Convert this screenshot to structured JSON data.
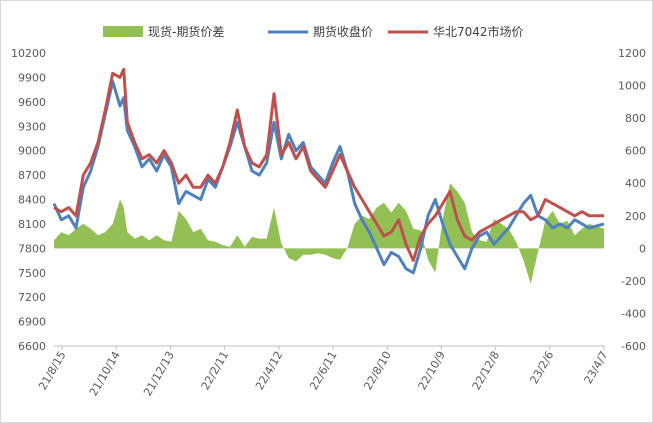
{
  "chart_data": {
    "type": "area+line",
    "legend": {
      "placement": "top",
      "items": [
        {
          "key": "spread",
          "label": "现货-期货价差",
          "color": "#92c054",
          "kind": "area"
        },
        {
          "key": "futures",
          "label": "期货收盘价",
          "color": "#4f81bd",
          "kind": "line"
        },
        {
          "key": "spot",
          "label": "华北7042市场价",
          "color": "#c0504d",
          "kind": "line"
        }
      ]
    },
    "left_axis": {
      "range": [
        6600,
        10200
      ],
      "ticks": [
        "6600",
        "6900",
        "7200",
        "7500",
        "7800",
        "8100",
        "8400",
        "8700",
        "9000",
        "9300",
        "9600",
        "9900",
        "10200"
      ]
    },
    "right_axis": {
      "range": [
        -600,
        1200
      ],
      "ticks": [
        "-600",
        "-400",
        "-200",
        "0",
        "200",
        "400",
        "600",
        "800",
        "1000",
        "1200"
      ]
    },
    "x_axis": {
      "ticks": [
        "21/8/15",
        "21/10/14",
        "21/12/13",
        "22/2/11",
        "22/4/12",
        "22/6/11",
        "22/8/10",
        "22/10/9",
        "22/12/8",
        "23/2/6",
        "23/4/7"
      ]
    },
    "series": {
      "futures": [
        [
          0,
          8350
        ],
        [
          2,
          8150
        ],
        [
          4,
          8200
        ],
        [
          6,
          8050
        ],
        [
          8,
          8550
        ],
        [
          10,
          8750
        ],
        [
          12,
          9050
        ],
        [
          14,
          9450
        ],
        [
          16,
          9850
        ],
        [
          18,
          9550
        ],
        [
          19,
          9650
        ],
        [
          20,
          9250
        ],
        [
          22,
          9050
        ],
        [
          24,
          8800
        ],
        [
          26,
          8900
        ],
        [
          28,
          8750
        ],
        [
          30,
          8950
        ],
        [
          32,
          8800
        ],
        [
          34,
          8350
        ],
        [
          36,
          8500
        ],
        [
          38,
          8450
        ],
        [
          40,
          8400
        ],
        [
          42,
          8650
        ],
        [
          44,
          8550
        ],
        [
          46,
          8800
        ],
        [
          48,
          9050
        ],
        [
          50,
          9350
        ],
        [
          52,
          9050
        ],
        [
          54,
          8750
        ],
        [
          56,
          8700
        ],
        [
          58,
          8850
        ],
        [
          60,
          9350
        ],
        [
          62,
          8900
        ],
        [
          64,
          9200
        ],
        [
          66,
          9000
        ],
        [
          68,
          9100
        ],
        [
          70,
          8800
        ],
        [
          72,
          8700
        ],
        [
          74,
          8600
        ],
        [
          76,
          8850
        ],
        [
          78,
          9050
        ],
        [
          80,
          8750
        ],
        [
          82,
          8350
        ],
        [
          84,
          8150
        ],
        [
          86,
          8000
        ],
        [
          88,
          7800
        ],
        [
          90,
          7600
        ],
        [
          92,
          7750
        ],
        [
          94,
          7700
        ],
        [
          96,
          7550
        ],
        [
          98,
          7500
        ],
        [
          100,
          7800
        ],
        [
          102,
          8200
        ],
        [
          104,
          8400
        ],
        [
          106,
          8100
        ],
        [
          108,
          7850
        ],
        [
          110,
          7700
        ],
        [
          112,
          7550
        ],
        [
          114,
          7800
        ],
        [
          116,
          7950
        ],
        [
          118,
          8000
        ],
        [
          120,
          7850
        ],
        [
          122,
          7950
        ],
        [
          124,
          8050
        ],
        [
          126,
          8200
        ],
        [
          128,
          8350
        ],
        [
          130,
          8450
        ],
        [
          132,
          8200
        ],
        [
          134,
          8150
        ],
        [
          136,
          8050
        ],
        [
          138,
          8100
        ],
        [
          140,
          8050
        ],
        [
          142,
          8150
        ],
        [
          144,
          8100
        ],
        [
          146,
          8050
        ],
        [
          150,
          8100
        ]
      ],
      "spot": [
        [
          0,
          8300
        ],
        [
          2,
          8250
        ],
        [
          4,
          8300
        ],
        [
          6,
          8200
        ],
        [
          8,
          8700
        ],
        [
          10,
          8850
        ],
        [
          12,
          9100
        ],
        [
          14,
          9500
        ],
        [
          16,
          9950
        ],
        [
          18,
          9900
        ],
        [
          19,
          10000
        ],
        [
          20,
          9350
        ],
        [
          22,
          9100
        ],
        [
          24,
          8900
        ],
        [
          26,
          8950
        ],
        [
          28,
          8850
        ],
        [
          30,
          9000
        ],
        [
          32,
          8850
        ],
        [
          34,
          8600
        ],
        [
          36,
          8700
        ],
        [
          38,
          8550
        ],
        [
          40,
          8550
        ],
        [
          42,
          8700
        ],
        [
          44,
          8600
        ],
        [
          46,
          8800
        ],
        [
          48,
          9100
        ],
        [
          50,
          9500
        ],
        [
          52,
          9050
        ],
        [
          54,
          8850
        ],
        [
          56,
          8800
        ],
        [
          58,
          8950
        ],
        [
          60,
          9700
        ],
        [
          62,
          8950
        ],
        [
          64,
          9100
        ],
        [
          66,
          8900
        ],
        [
          68,
          9050
        ],
        [
          70,
          8750
        ],
        [
          72,
          8650
        ],
        [
          74,
          8550
        ],
        [
          76,
          8750
        ],
        [
          78,
          8950
        ],
        [
          80,
          8750
        ],
        [
          82,
          8550
        ],
        [
          84,
          8400
        ],
        [
          86,
          8250
        ],
        [
          88,
          8100
        ],
        [
          90,
          7950
        ],
        [
          92,
          8000
        ],
        [
          94,
          8150
        ],
        [
          96,
          7850
        ],
        [
          98,
          7650
        ],
        [
          100,
          7950
        ],
        [
          102,
          8100
        ],
        [
          104,
          8200
        ],
        [
          106,
          8350
        ],
        [
          108,
          8500
        ],
        [
          110,
          8150
        ],
        [
          112,
          7950
        ],
        [
          114,
          7900
        ],
        [
          116,
          8000
        ],
        [
          118,
          8050
        ],
        [
          120,
          8100
        ],
        [
          122,
          8150
        ],
        [
          124,
          8200
        ],
        [
          126,
          8250
        ],
        [
          128,
          8250
        ],
        [
          130,
          8150
        ],
        [
          132,
          8200
        ],
        [
          134,
          8400
        ],
        [
          136,
          8350
        ],
        [
          138,
          8300
        ],
        [
          140,
          8250
        ],
        [
          142,
          8200
        ],
        [
          144,
          8250
        ],
        [
          146,
          8200
        ],
        [
          150,
          8200
        ]
      ],
      "spread": [
        [
          0,
          50
        ],
        [
          2,
          100
        ],
        [
          4,
          80
        ],
        [
          6,
          120
        ],
        [
          8,
          150
        ],
        [
          10,
          120
        ],
        [
          12,
          80
        ],
        [
          14,
          100
        ],
        [
          16,
          150
        ],
        [
          18,
          300
        ],
        [
          19,
          250
        ],
        [
          20,
          100
        ],
        [
          22,
          60
        ],
        [
          24,
          80
        ],
        [
          26,
          50
        ],
        [
          28,
          80
        ],
        [
          30,
          50
        ],
        [
          32,
          40
        ],
        [
          34,
          230
        ],
        [
          36,
          180
        ],
        [
          38,
          100
        ],
        [
          40,
          120
        ],
        [
          42,
          50
        ],
        [
          44,
          40
        ],
        [
          46,
          20
        ],
        [
          48,
          10
        ],
        [
          50,
          80
        ],
        [
          52,
          10
        ],
        [
          54,
          70
        ],
        [
          56,
          60
        ],
        [
          58,
          60
        ],
        [
          60,
          250
        ],
        [
          62,
          30
        ],
        [
          64,
          -60
        ],
        [
          66,
          -80
        ],
        [
          68,
          -40
        ],
        [
          70,
          -40
        ],
        [
          72,
          -30
        ],
        [
          74,
          -40
        ],
        [
          76,
          -60
        ],
        [
          78,
          -70
        ],
        [
          80,
          0
        ],
        [
          82,
          150
        ],
        [
          84,
          200
        ],
        [
          86,
          180
        ],
        [
          88,
          250
        ],
        [
          90,
          280
        ],
        [
          92,
          220
        ],
        [
          94,
          280
        ],
        [
          96,
          230
        ],
        [
          98,
          120
        ],
        [
          100,
          110
        ],
        [
          102,
          -70
        ],
        [
          104,
          -150
        ],
        [
          106,
          180
        ],
        [
          108,
          400
        ],
        [
          110,
          350
        ],
        [
          112,
          280
        ],
        [
          114,
          100
        ],
        [
          116,
          50
        ],
        [
          118,
          40
        ],
        [
          120,
          180
        ],
        [
          122,
          150
        ],
        [
          124,
          120
        ],
        [
          126,
          40
        ],
        [
          128,
          -70
        ],
        [
          130,
          -220
        ],
        [
          132,
          -20
        ],
        [
          134,
          170
        ],
        [
          136,
          230
        ],
        [
          138,
          150
        ],
        [
          140,
          170
        ],
        [
          142,
          80
        ],
        [
          144,
          120
        ],
        [
          146,
          150
        ],
        [
          150,
          120
        ]
      ]
    }
  }
}
